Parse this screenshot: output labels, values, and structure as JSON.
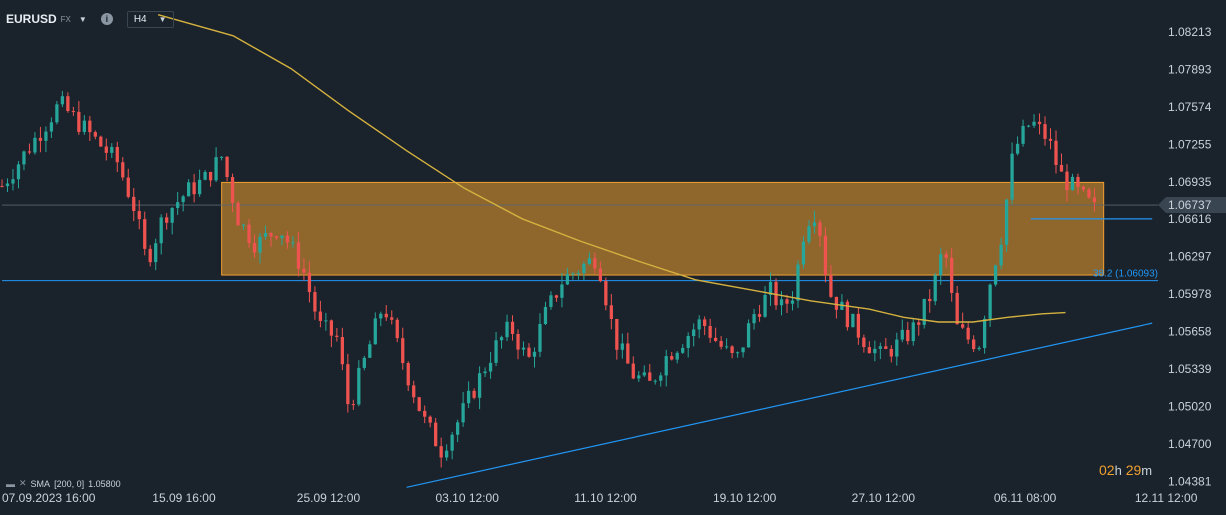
{
  "header": {
    "symbol": "EURUSD",
    "symbol_type": "FX",
    "timeframe": "H4",
    "info_icon": "info-icon",
    "dropdown_icon": "chevron-down-icon"
  },
  "indicator": {
    "label": "SMA",
    "params": "[200,  0]",
    "value": "1.05800"
  },
  "countdown": {
    "hours": "02",
    "h": "h",
    "minutes": "29",
    "m": "m"
  },
  "colors": {
    "background": "#1a222b",
    "bull": "#26a69a",
    "bear": "#ef5350",
    "sma": "#d4b13f",
    "zone": "#f0a030",
    "trendline": "#2196f3",
    "price_tag": "#2196f3"
  },
  "chart_data": {
    "type": "candlestick",
    "symbol": "EURUSD",
    "timeframe": "H4",
    "ylim": [
      1.0435,
      1.084
    ],
    "y_ticks": [
      "1.08213",
      "1.07893",
      "1.07574",
      "1.07255",
      "1.06935",
      "1.06737",
      "1.06616",
      "1.06297",
      "1.05978",
      "1.05658",
      "1.05339",
      "1.05020",
      "1.04700",
      "1.04381"
    ],
    "x_ticks": [
      "07.09.2023  16:00",
      "15.09  16:00",
      "25.09  12:00",
      "03.10  12:00",
      "11.10  12:00",
      "19.10  12:00",
      "27.10  12:00",
      "06.11  08:00",
      "12.11  12:00"
    ],
    "current_price": "1.06737",
    "bid_line_price": "1.06619",
    "fib_level": {
      "label": "38.2 (1.06093)",
      "value": 1.06093
    },
    "zone": {
      "top": 1.0693,
      "bottom": 1.0614
    },
    "sma": {
      "period": 200,
      "value": 1.058,
      "points": [
        [
          0.135,
          1.0836
        ],
        [
          0.2,
          1.0818
        ],
        [
          0.25,
          1.079
        ],
        [
          0.3,
          1.0754
        ],
        [
          0.35,
          1.072
        ],
        [
          0.4,
          1.0688
        ],
        [
          0.45,
          1.0662
        ],
        [
          0.5,
          1.0643
        ],
        [
          0.55,
          1.0626
        ],
        [
          0.6,
          1.061
        ],
        [
          0.65,
          1.0601
        ],
        [
          0.7,
          1.0592
        ],
        [
          0.75,
          1.0585
        ],
        [
          0.78,
          1.0578
        ],
        [
          0.81,
          1.0574
        ],
        [
          0.84,
          1.0574
        ],
        [
          0.87,
          1.0578
        ],
        [
          0.9,
          1.0581
        ],
        [
          0.92,
          1.0582
        ]
      ]
    },
    "trendline": {
      "from": [
        0.35,
        1.0433
      ],
      "to": [
        0.995,
        1.0573
      ]
    },
    "candles_path": [
      [
        0.0,
        1.069
      ],
      [
        0.025,
        1.0725
      ],
      [
        0.05,
        1.076
      ],
      [
        0.075,
        1.0735
      ],
      [
        0.1,
        1.071
      ],
      [
        0.115,
        1.067
      ],
      [
        0.125,
        1.0625
      ],
      [
        0.14,
        1.0665
      ],
      [
        0.16,
        1.0685
      ],
      [
        0.175,
        1.0695
      ],
      [
        0.19,
        1.0715
      ],
      [
        0.205,
        1.066
      ],
      [
        0.22,
        1.064
      ],
      [
        0.24,
        1.0655
      ],
      [
        0.26,
        1.062
      ],
      [
        0.275,
        1.057
      ],
      [
        0.29,
        1.056
      ],
      [
        0.3,
        1.05
      ],
      [
        0.315,
        1.0545
      ],
      [
        0.33,
        1.059
      ],
      [
        0.345,
        1.0545
      ],
      [
        0.365,
        1.049
      ],
      [
        0.38,
        1.0465
      ],
      [
        0.395,
        1.049
      ],
      [
        0.41,
        1.052
      ],
      [
        0.425,
        1.055
      ],
      [
        0.44,
        1.057
      ],
      [
        0.455,
        1.054
      ],
      [
        0.47,
        1.058
      ],
      [
        0.485,
        1.061
      ],
      [
        0.5,
        1.062
      ],
      [
        0.515,
        1.063
      ],
      [
        0.53,
        1.056
      ],
      [
        0.545,
        1.053
      ],
      [
        0.56,
        1.052
      ],
      [
        0.575,
        1.0545
      ],
      [
        0.59,
        1.056
      ],
      [
        0.605,
        1.0575
      ],
      [
        0.62,
        1.0555
      ],
      [
        0.635,
        1.054
      ],
      [
        0.65,
        1.058
      ],
      [
        0.665,
        1.06
      ],
      [
        0.675,
        1.0585
      ],
      [
        0.685,
        1.06
      ],
      [
        0.695,
        1.066
      ],
      [
        0.705,
        1.067
      ],
      [
        0.715,
        1.06
      ],
      [
        0.73,
        1.058
      ],
      [
        0.745,
        1.056
      ],
      [
        0.76,
        1.0545
      ],
      [
        0.775,
        1.0555
      ],
      [
        0.79,
        1.057
      ],
      [
        0.805,
        1.06
      ],
      [
        0.815,
        1.064
      ],
      [
        0.825,
        1.057
      ],
      [
        0.835,
        1.056
      ],
      [
        0.845,
        1.0555
      ],
      [
        0.855,
        1.061
      ],
      [
        0.865,
        1.065
      ],
      [
        0.875,
        1.072
      ],
      [
        0.89,
        1.0745
      ],
      [
        0.905,
        1.073
      ],
      [
        0.915,
        1.07
      ],
      [
        0.925,
        1.069
      ],
      [
        0.935,
        1.068
      ],
      [
        0.945,
        1.067
      ]
    ]
  }
}
